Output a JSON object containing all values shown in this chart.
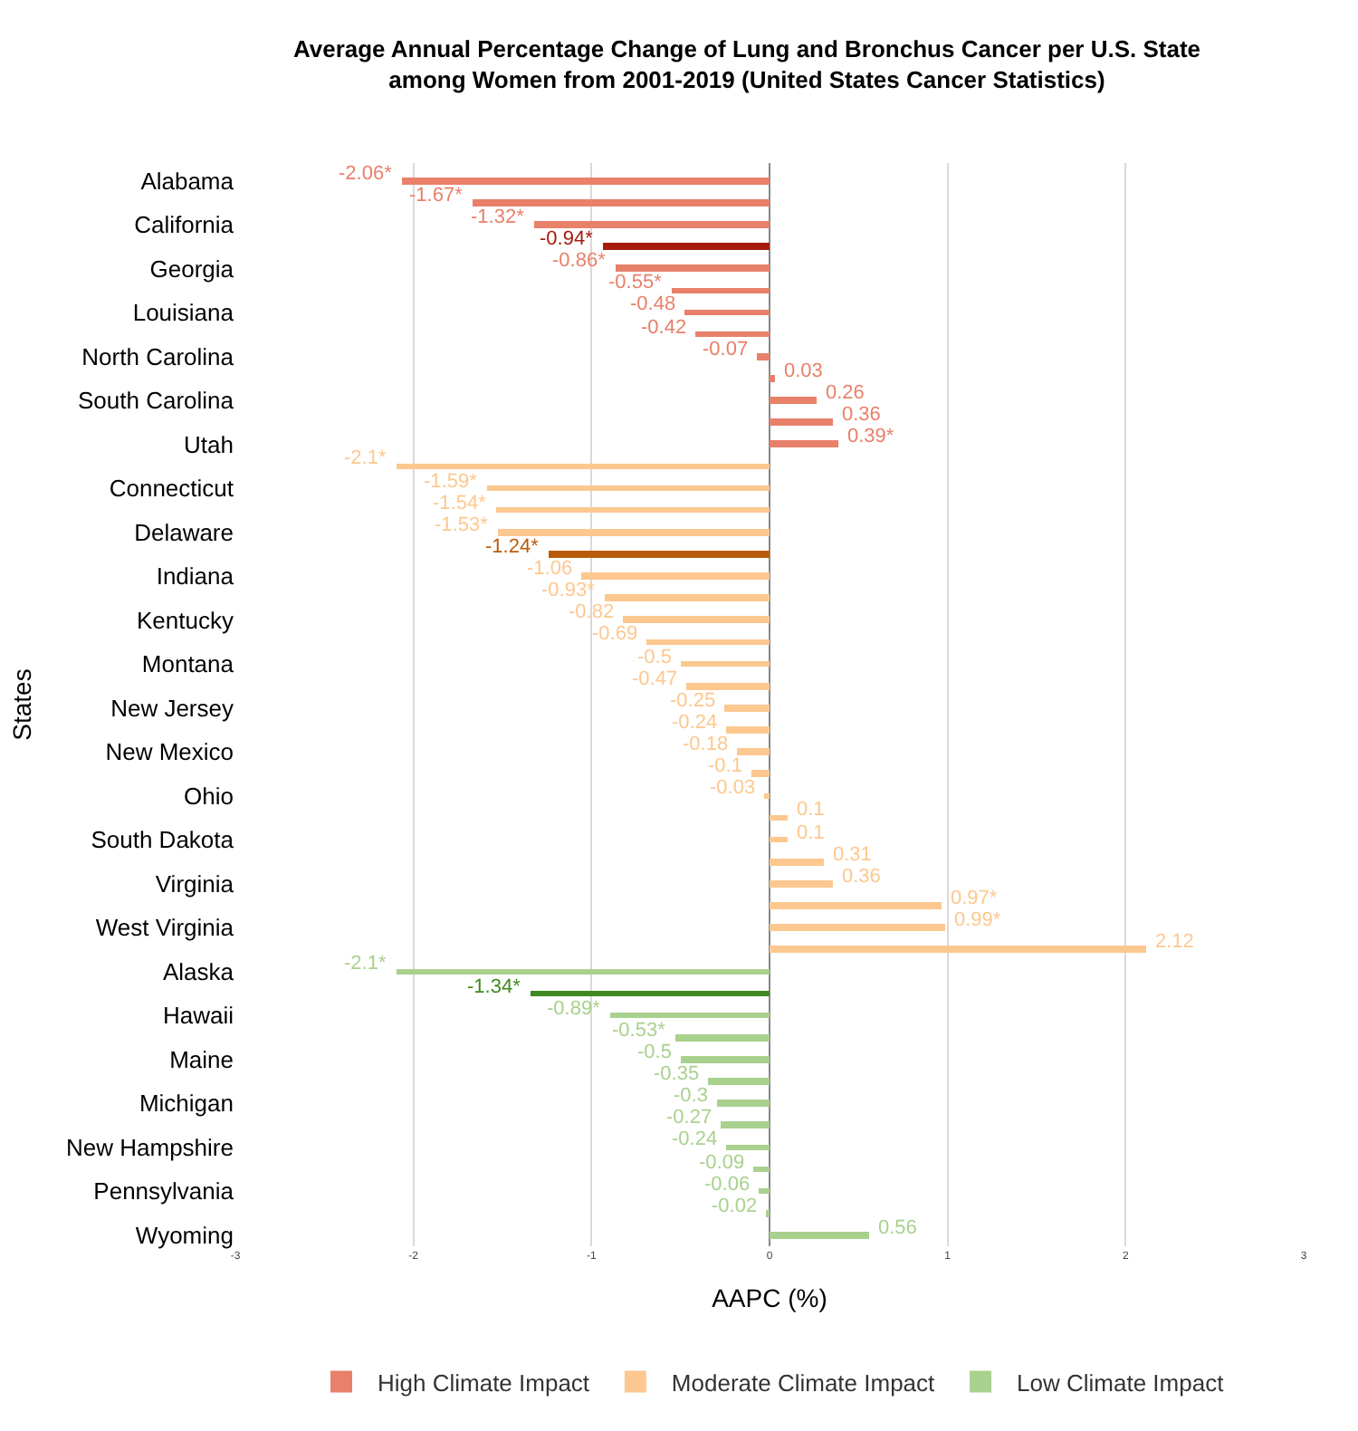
{
  "chart_data": {
    "type": "bar",
    "orientation": "horizontal",
    "title": "Average Annual Percentage Change of Lung and Bronchus Cancer per U.S. State\namong Women from 2001-2019 (United States Cancer Statistics)",
    "xlabel": "AAPC (%)",
    "ylabel": "States",
    "categories": [
      "Alabama",
      null,
      "California",
      null,
      "Georgia",
      null,
      "Louisiana",
      null,
      "North Carolina",
      null,
      "South Carolina",
      null,
      "Utah",
      null,
      "Connecticut",
      null,
      "Delaware",
      null,
      "Indiana",
      null,
      "Kentucky",
      null,
      "Montana",
      null,
      "New Jersey",
      null,
      "New Mexico",
      null,
      "Ohio",
      null,
      "South Dakota",
      null,
      "Virginia",
      null,
      "West Virginia",
      null,
      "Alaska",
      null,
      "Hawaii",
      null,
      "Maine",
      null,
      "Michigan",
      null,
      "New Hampshire",
      null,
      "Pennsylvania",
      null,
      "Wyoming"
    ],
    "series": [
      {
        "name": "High Climate Impact",
        "color": "#e8806a",
        "values": [
          -2.06,
          -1.67,
          -1.32,
          -0.94,
          -0.86,
          -0.55,
          -0.48,
          -0.42,
          -0.07,
          0.03,
          0.26,
          0.36,
          0.39,
          null,
          null,
          null,
          null,
          null,
          null,
          null,
          null,
          null,
          null,
          null,
          null,
          null,
          null,
          null,
          null,
          null,
          null,
          null,
          null,
          null,
          null,
          null,
          null,
          null,
          null,
          null,
          null,
          null,
          null,
          null,
          null,
          null,
          null,
          null,
          null
        ],
        "colors": [
          "#e8806a",
          "#e8806a",
          "#e8806a",
          "#a51c0f",
          "#e8806a",
          "#e8806a",
          "#e8806a",
          "#e8806a",
          "#e8806a",
          "#e8806a",
          "#e8806a",
          "#e8806a",
          "#e8806a",
          null,
          null,
          null,
          null,
          null,
          null,
          null,
          null,
          null,
          null,
          null,
          null,
          null,
          null,
          null,
          null,
          null,
          null,
          null,
          null,
          null,
          null,
          null,
          null,
          null,
          null,
          null,
          null,
          null,
          null,
          null,
          null,
          null,
          null,
          null,
          null
        ],
        "value_labels": [
          "-2.06*",
          "-1.67*",
          "-1.32*",
          "-0.94*",
          "-0.86*",
          "-0.55*",
          "-0.48",
          "-0.42",
          "-0.07",
          "0.03",
          "0.26",
          "0.36",
          "0.39*",
          null,
          null,
          null,
          null,
          null,
          null,
          null,
          null,
          null,
          null,
          null,
          null,
          null,
          null,
          null,
          null,
          null,
          null,
          null,
          null,
          null,
          null,
          null,
          null,
          null,
          null,
          null,
          null,
          null,
          null,
          null,
          null,
          null,
          null,
          null,
          null
        ]
      },
      {
        "name": "Moderate Climate Impact",
        "color": "#fcc88f",
        "values": [
          null,
          null,
          null,
          null,
          null,
          null,
          null,
          null,
          null,
          null,
          null,
          null,
          null,
          -2.1,
          -1.59,
          -1.54,
          -1.53,
          -1.24,
          -1.06,
          -0.93,
          -0.82,
          -0.69,
          -0.5,
          -0.47,
          -0.25,
          -0.24,
          -0.18,
          -0.1,
          -0.03,
          0.1,
          0.1,
          0.31,
          0.36,
          0.97,
          0.99,
          2.12,
          null,
          null,
          null,
          null,
          null,
          null,
          null,
          null,
          null,
          null,
          null,
          null,
          null
        ],
        "colors": [
          null,
          null,
          null,
          null,
          null,
          null,
          null,
          null,
          null,
          null,
          null,
          null,
          null,
          "#fcc88f",
          "#fcc88f",
          "#fcc88f",
          "#fcc88f",
          "#b85c0c",
          "#fcc88f",
          "#fcc88f",
          "#fcc88f",
          "#fcc88f",
          "#fcc88f",
          "#fcc88f",
          "#fcc88f",
          "#fcc88f",
          "#fcc88f",
          "#fcc88f",
          "#fcc88f",
          "#fcc88f",
          "#fcc88f",
          "#fcc88f",
          "#fcc88f",
          "#fcc88f",
          "#fcc88f",
          "#fcc88f",
          null,
          null,
          null,
          null,
          null,
          null,
          null,
          null,
          null,
          null,
          null,
          null,
          null
        ],
        "value_labels": [
          null,
          null,
          null,
          null,
          null,
          null,
          null,
          null,
          null,
          null,
          null,
          null,
          null,
          "-2.1*",
          "-1.59*",
          "-1.54*",
          "-1.53*",
          "-1.24*",
          "-1.06",
          "-0.93*",
          "-0.82",
          "-0.69",
          "-0.5",
          "-0.47",
          "-0.25",
          "-0.24",
          "-0.18",
          "-0.1",
          "-0.03",
          "0.1",
          "0.1",
          "0.31",
          "0.36",
          "0.97*",
          "0.99*",
          "2.12",
          null,
          null,
          null,
          null,
          null,
          null,
          null,
          null,
          null,
          null,
          null,
          null,
          null
        ]
      },
      {
        "name": "Low Climate Impact",
        "color": "#a9d18e",
        "values": [
          null,
          null,
          null,
          null,
          null,
          null,
          null,
          null,
          null,
          null,
          null,
          null,
          null,
          null,
          null,
          null,
          null,
          null,
          null,
          null,
          null,
          null,
          null,
          null,
          null,
          null,
          null,
          null,
          null,
          null,
          null,
          null,
          null,
          null,
          null,
          null,
          -2.1,
          -1.34,
          -0.89,
          -0.53,
          -0.5,
          -0.35,
          -0.3,
          -0.27,
          -0.24,
          -0.09,
          -0.06,
          -0.02,
          0.56
        ],
        "colors": [
          null,
          null,
          null,
          null,
          null,
          null,
          null,
          null,
          null,
          null,
          null,
          null,
          null,
          null,
          null,
          null,
          null,
          null,
          null,
          null,
          null,
          null,
          null,
          null,
          null,
          null,
          null,
          null,
          null,
          null,
          null,
          null,
          null,
          null,
          null,
          null,
          "#a9d18e",
          "#3f8a20",
          "#a9d18e",
          "#a9d18e",
          "#a9d18e",
          "#a9d18e",
          "#a9d18e",
          "#a9d18e",
          "#a9d18e",
          "#a9d18e",
          "#a9d18e",
          "#a9d18e",
          "#a9d18e"
        ],
        "value_labels": [
          null,
          null,
          null,
          null,
          null,
          null,
          null,
          null,
          null,
          null,
          null,
          null,
          null,
          null,
          null,
          null,
          null,
          null,
          null,
          null,
          null,
          null,
          null,
          null,
          null,
          null,
          null,
          null,
          null,
          null,
          null,
          null,
          null,
          null,
          null,
          null,
          "-2.1*",
          "-1.34*",
          "-0.89*",
          "-0.53*",
          "-0.5",
          "-0.35",
          "-0.3",
          "-0.27",
          "-0.24",
          "-0.09",
          "-0.06",
          "-0.02",
          "0.56"
        ]
      }
    ],
    "xlim": [
      -3,
      3
    ],
    "xticks": [
      -3,
      -2,
      -1,
      0,
      1,
      2,
      3
    ],
    "grid": "x",
    "legend": "bottom"
  }
}
